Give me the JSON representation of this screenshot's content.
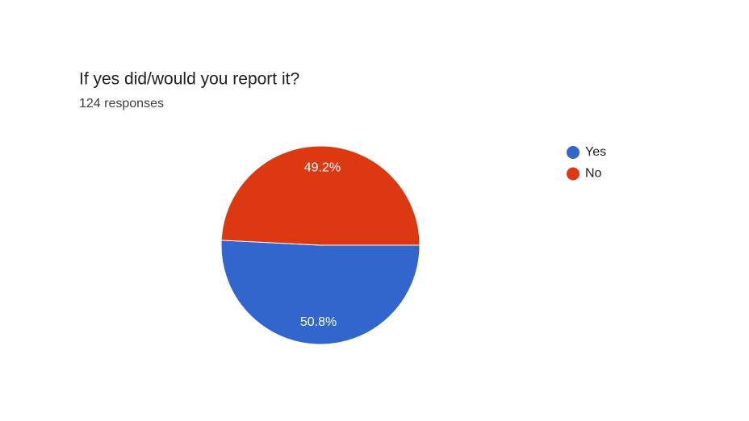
{
  "chart_data": {
    "type": "pie",
    "title": "If yes did/would you report it?",
    "subtitle": "124 responses",
    "categories": [
      "Yes",
      "No"
    ],
    "values": [
      50.8,
      49.2
    ],
    "value_labels": [
      "50.8%",
      "49.2%"
    ],
    "colors": [
      "#3366cc",
      "#dc3912"
    ],
    "legend": "right"
  }
}
